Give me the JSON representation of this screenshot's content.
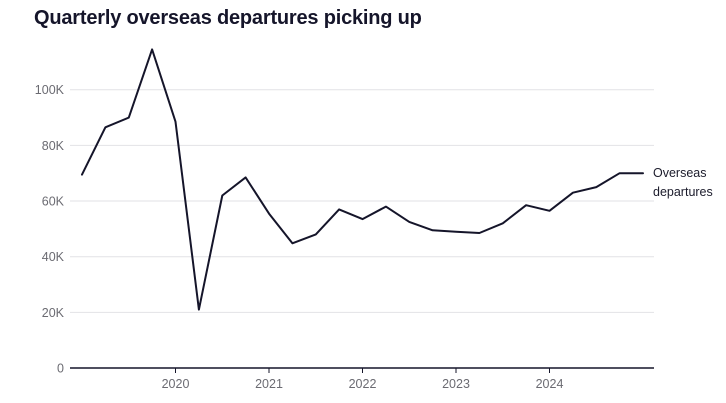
{
  "title": "Quarterly overseas departures picking up",
  "colors": {
    "line": "#15152a",
    "grid": "#e2e2e6",
    "axis": "#15152a",
    "tick_text": "#6b6b72"
  },
  "chart_data": {
    "type": "line",
    "title": "Quarterly overseas departures picking up",
    "xlabel": "",
    "ylabel": "",
    "x_ticks": [
      2020,
      2021,
      2022,
      2023,
      2024
    ],
    "y_ticks": [
      0,
      20000,
      40000,
      60000,
      80000,
      100000
    ],
    "y_tick_labels": [
      "0",
      "20K",
      "40K",
      "60K",
      "80K",
      "100K"
    ],
    "ylim": [
      0,
      115000
    ],
    "xlim": [
      2019.0,
      2025.0
    ],
    "grid": true,
    "legend": "direct label at end of line",
    "series": [
      {
        "name": "Overseas departures",
        "x": [
          2019.0,
          2019.25,
          2019.5,
          2019.75,
          2020.0,
          2020.25,
          2020.5,
          2020.75,
          2021.0,
          2021.25,
          2021.5,
          2021.75,
          2022.0,
          2022.25,
          2022.5,
          2022.75,
          2023.0,
          2023.25,
          2023.5,
          2023.75,
          2024.0,
          2024.25,
          2024.5,
          2024.75,
          2025.0
        ],
        "values": [
          69500,
          86500,
          90000,
          114500,
          88500,
          21000,
          62000,
          68500,
          55500,
          44800,
          48000,
          57000,
          53500,
          58000,
          52500,
          49500,
          49000,
          48500,
          52000,
          58500,
          56500,
          63000,
          65000,
          70000,
          70000
        ]
      }
    ]
  }
}
